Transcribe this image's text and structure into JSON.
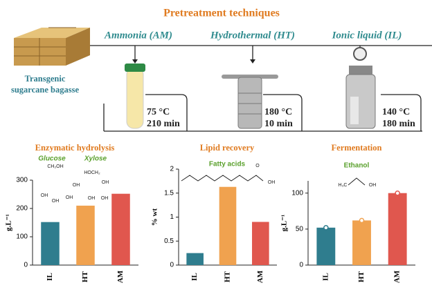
{
  "diagram": {
    "title": "Pretreatment techniques",
    "feedstock": [
      "Transgenic",
      "sugarcane bagasse"
    ],
    "techniques": [
      {
        "name": "Ammonia (AM)",
        "temperature": "75 °C",
        "time": "210 min"
      },
      {
        "name": "Hydrothermal (HT)",
        "temperature": "180 °C",
        "time": "10 min"
      },
      {
        "name": "Ionic liquid (IL)",
        "temperature": "140 °C",
        "time": "180 min"
      }
    ]
  },
  "chart_data": [
    {
      "type": "bar",
      "title": "Enzymatic hydrolysis",
      "y_label": "g.L⁻¹",
      "annotations": [
        "Glucose",
        "Xylose"
      ],
      "structure_labels": [
        "CH₂OH",
        "OH",
        "OH",
        "OH",
        "OH",
        "HOCH₂",
        "OH",
        "OH",
        "OH"
      ],
      "categories": [
        "IL",
        "HT",
        "AM"
      ],
      "values": [
        152,
        210,
        252
      ],
      "colors": [
        "#2f7d8e",
        "#f0a24f",
        "#e0574e"
      ],
      "ylim": [
        0,
        300
      ],
      "yticks": [
        0,
        100,
        200,
        300
      ],
      "markers": false
    },
    {
      "type": "bar",
      "title": "Lipid recovery",
      "y_label": "% wt",
      "annotations": [
        "Fatty acids"
      ],
      "structure_labels": [
        "O",
        "OH"
      ],
      "categories": [
        "IL",
        "HT",
        "AM"
      ],
      "values": [
        0.25,
        1.63,
        0.9
      ],
      "colors": [
        "#2f7d8e",
        "#f0a24f",
        "#e0574e"
      ],
      "ylim": [
        0,
        2
      ],
      "yticks": [
        0,
        0.5,
        1,
        1.5,
        2
      ],
      "markers": false
    },
    {
      "type": "bar",
      "title": "Fermentation",
      "y_label": "g.L⁻¹",
      "annotations": [
        "Ethanol"
      ],
      "structure_labels": [
        "H₃C",
        "OH"
      ],
      "categories": [
        "IL",
        "HT",
        "AM"
      ],
      "values": [
        52,
        62,
        100
      ],
      "colors": [
        "#2f7d8e",
        "#f0a24f",
        "#e0574e"
      ],
      "ylim": [
        0,
        117
      ],
      "yticks": [
        0,
        50,
        100
      ],
      "markers": true
    }
  ]
}
